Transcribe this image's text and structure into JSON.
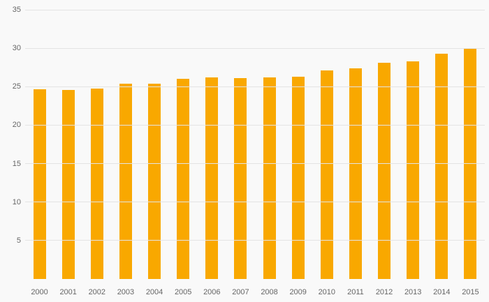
{
  "chart_data": {
    "type": "bar",
    "categories": [
      "2000",
      "2001",
      "2002",
      "2003",
      "2004",
      "2005",
      "2006",
      "2007",
      "2008",
      "2009",
      "2010",
      "2011",
      "2012",
      "2013",
      "2014",
      "2015"
    ],
    "values": [
      24.7,
      24.6,
      24.8,
      25.4,
      25.4,
      26.0,
      26.2,
      26.1,
      26.2,
      26.3,
      27.1,
      27.4,
      28.1,
      28.3,
      29.3,
      29.9
    ],
    "title": "",
    "xlabel": "",
    "ylabel": "",
    "ylim": [
      0,
      35
    ],
    "yticks": [
      5,
      10,
      15,
      20,
      25,
      30,
      35
    ],
    "grid": true,
    "legend": false,
    "colors": {
      "bar": "#F9A800",
      "background": "#f9f9f9",
      "gridline": "#e4e4e4",
      "tick_label": "#666666"
    }
  }
}
